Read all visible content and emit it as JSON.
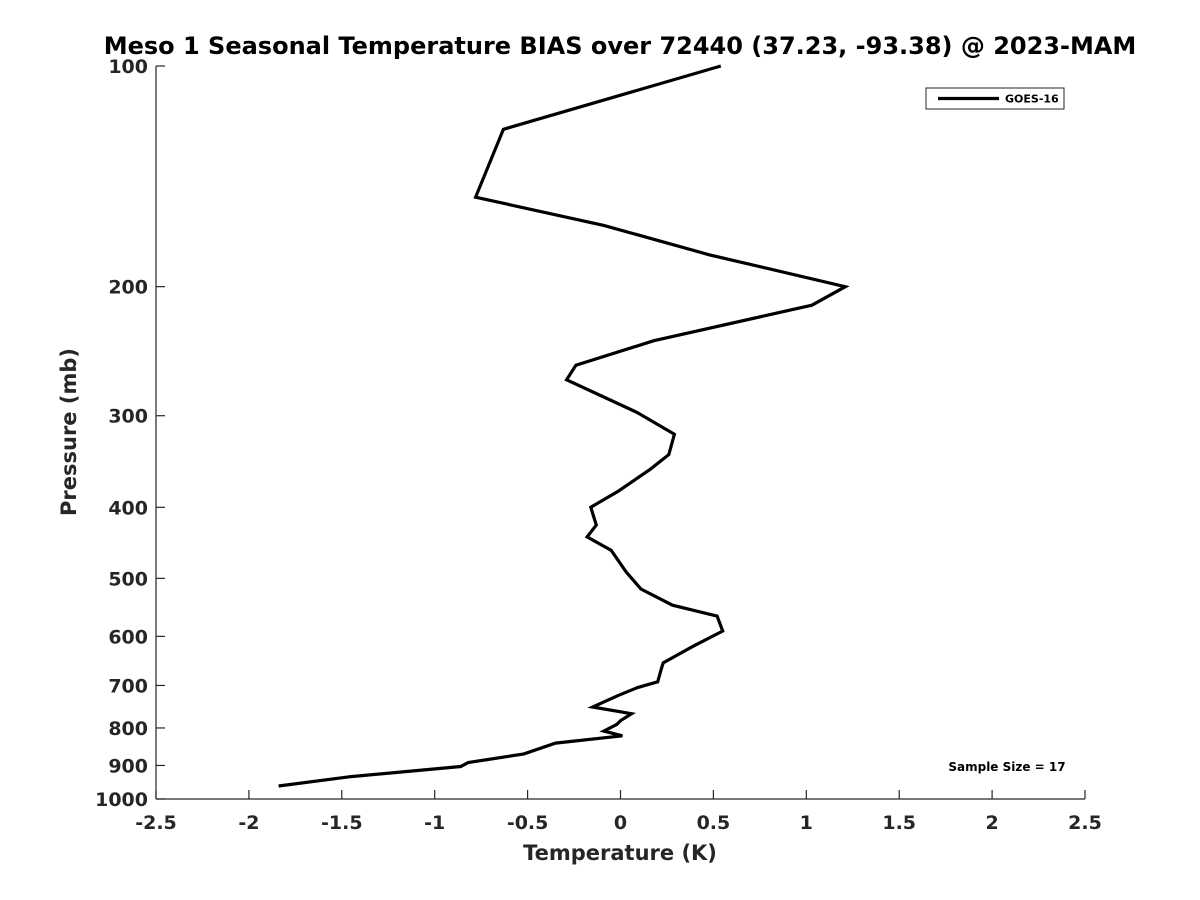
{
  "chart_data": {
    "type": "line",
    "title": "Meso 1 Seasonal Temperature BIAS over 72440 (37.23, -93.38) @ 2023-MAM",
    "xlabel": "Temperature (K)",
    "ylabel": "Pressure (mb)",
    "xlim": [
      -2.5,
      2.5
    ],
    "ylim": [
      100,
      1000
    ],
    "yscale": "log",
    "y_reversed": true,
    "grid": false,
    "x_ticks": [
      -2.5,
      -2,
      -1.5,
      -1,
      -0.5,
      0,
      0.5,
      1,
      1.5,
      2,
      2.5
    ],
    "x_tick_labels": [
      "-2.5",
      "-2",
      "-1.5",
      "-1",
      "-0.5",
      "0",
      "0.5",
      "1",
      "1.5",
      "2",
      "2.5"
    ],
    "y_ticks": [
      100,
      200,
      300,
      400,
      500,
      600,
      700,
      800,
      900,
      1000
    ],
    "y_tick_labels": [
      "100",
      "200",
      "300",
      "400",
      "500",
      "600",
      "700",
      "800",
      "900",
      "1000"
    ],
    "legend_position": "top-right",
    "annotation": "Sample Size = 17",
    "annotation_position": "bottom-right",
    "series": [
      {
        "name": "GOES-16",
        "color": "#000000",
        "x": [
          0.54,
          -0.63,
          -0.78,
          -0.09,
          0.48,
          1.21,
          1.03,
          0.18,
          -0.24,
          -0.29,
          0.09,
          0.29,
          0.26,
          0.16,
          -0.01,
          -0.16,
          -0.13,
          -0.18,
          -0.05,
          0.03,
          0.11,
          0.28,
          0.52,
          0.55,
          0.39,
          0.23,
          0.22,
          0.2,
          0.09,
          -0.01,
          -0.15,
          0.06,
          0.0,
          -0.02,
          -0.09,
          0.01,
          -0.35,
          -0.52,
          -0.82,
          -0.86,
          -1.45,
          -1.84
        ],
        "y": [
          100,
          122,
          151,
          165,
          181,
          200,
          212,
          237,
          256,
          268,
          297,
          318,
          339,
          355,
          380,
          400,
          423,
          439,
          458,
          490,
          517,
          544,
          563,
          590,
          619,
          652,
          664,
          692,
          705,
          722,
          749,
          765,
          782,
          791,
          808,
          820,
          839,
          868,
          892,
          903,
          932,
          960
        ]
      }
    ]
  }
}
